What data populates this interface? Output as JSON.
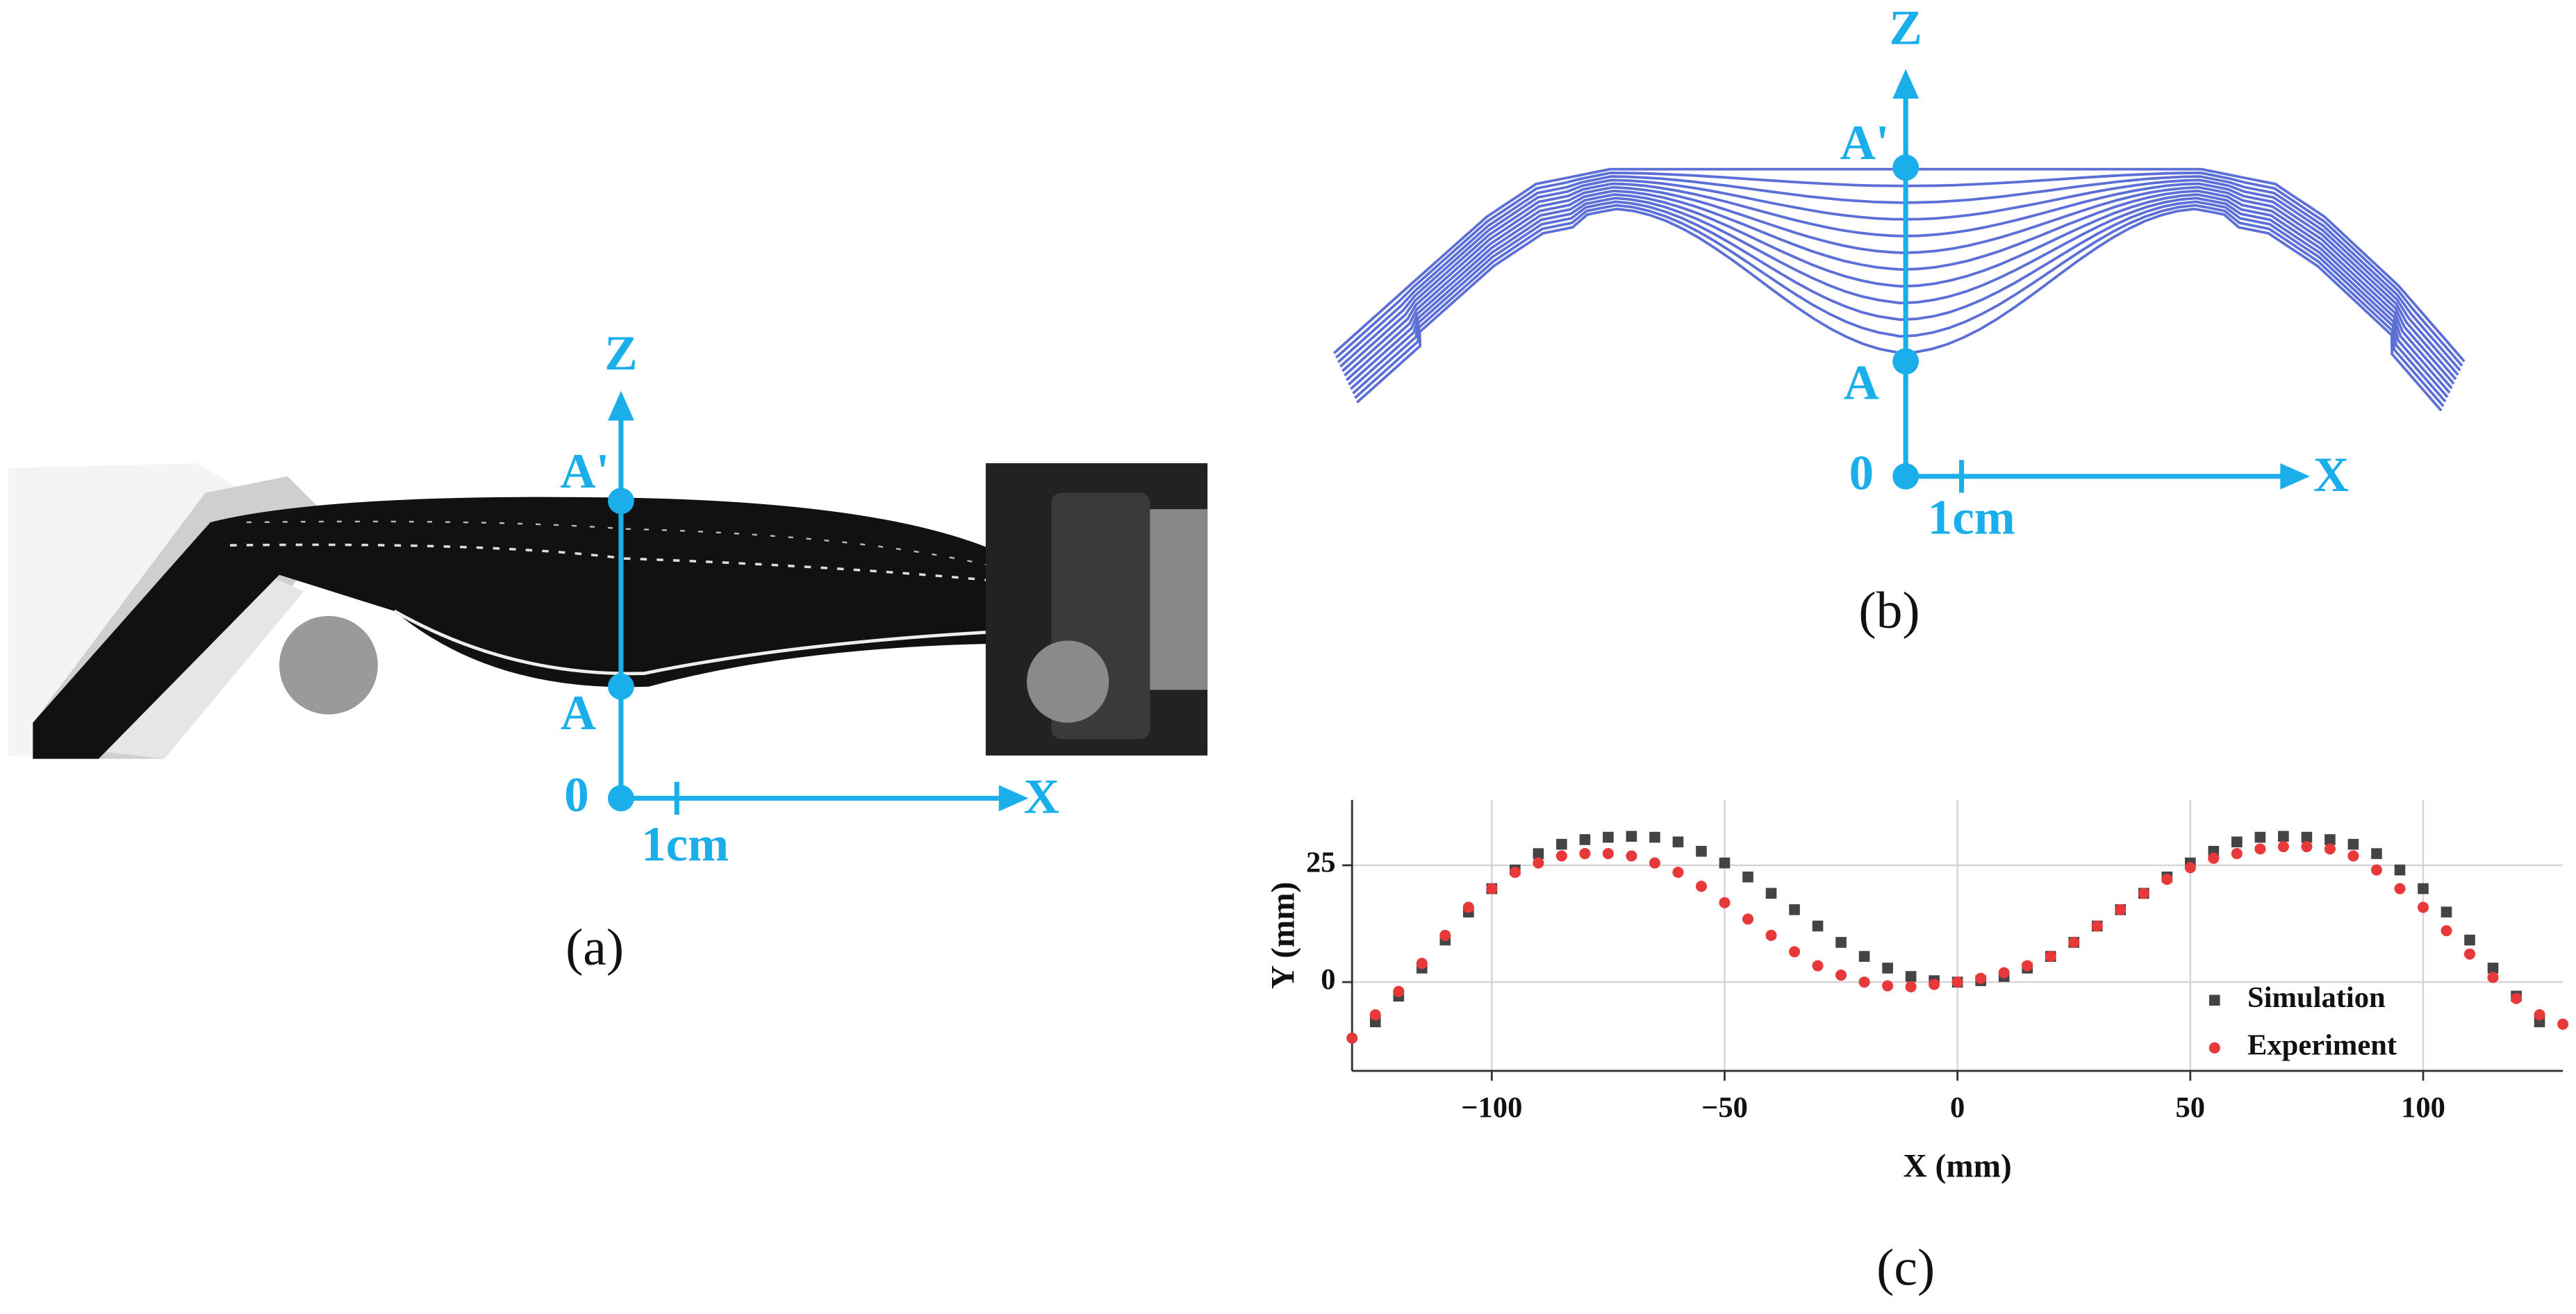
{
  "panels": {
    "a": {
      "label": "(a)",
      "axis_z": "Z",
      "axis_x": "X",
      "origin": "0",
      "point_top": "A'",
      "point_bottom": "A",
      "scale": "1cm"
    },
    "b": {
      "label": "(b)",
      "axis_z": "Z",
      "axis_x": "X",
      "origin": "0",
      "point_top": "A'",
      "point_bottom": "A",
      "scale": "1cm"
    },
    "c": {
      "label": "(c)"
    }
  },
  "chart_data": {
    "type": "scatter",
    "x_label": "X (mm)",
    "y_label": "Y (mm)",
    "xlim": [
      -130,
      130
    ],
    "ylim": [
      -19,
      39
    ],
    "xticks": [
      {
        "value": -100,
        "label": "−100"
      },
      {
        "value": -50,
        "label": "−50"
      },
      0,
      50,
      100
    ],
    "yticks": [
      0,
      25
    ],
    "grid": true,
    "legend": "lower right",
    "series": [
      {
        "name": "Simulation",
        "color": "#444444",
        "marker": "square",
        "x": [
          -125,
          -120,
          -115,
          -110,
          -105,
          -100,
          -95,
          -90,
          -85,
          -80,
          -75,
          -70,
          -65,
          -60,
          -55,
          -50,
          -45,
          -40,
          -35,
          -30,
          -25,
          -20,
          -15,
          -10,
          -5,
          0,
          5,
          10,
          15,
          20,
          25,
          30,
          35,
          40,
          45,
          50,
          55,
          60,
          65,
          70,
          75,
          80,
          85,
          90,
          95,
          100,
          105,
          110,
          115,
          120,
          125
        ],
        "values": [
          -8.5,
          -3,
          3,
          9,
          15,
          20,
          24,
          27.5,
          29.5,
          30.5,
          31,
          31.2,
          31,
          30,
          28,
          25.5,
          22.5,
          19,
          15.5,
          12,
          8.5,
          5.5,
          3,
          1.2,
          0.3,
          0,
          0.3,
          1.2,
          3,
          5.5,
          8.5,
          12,
          15.5,
          19,
          22.5,
          25.5,
          28,
          30,
          31,
          31.2,
          31,
          30.5,
          29.5,
          27.5,
          24,
          20,
          15,
          9,
          3,
          -3,
          -8.5
        ]
      },
      {
        "name": "Experiment",
        "color": "#e8393a",
        "marker": "circle",
        "x": [
          -130,
          -125,
          -120,
          -115,
          -110,
          -105,
          -100,
          -95,
          -90,
          -85,
          -80,
          -75,
          -70,
          -65,
          -60,
          -55,
          -50,
          -45,
          -40,
          -35,
          -30,
          -25,
          -20,
          -15,
          -10,
          -5,
          0,
          5,
          10,
          15,
          20,
          25,
          30,
          35,
          40,
          45,
          50,
          55,
          60,
          65,
          70,
          75,
          80,
          85,
          90,
          95,
          100,
          105,
          110,
          115,
          120,
          125,
          130
        ],
        "values": [
          -12,
          -7,
          -2,
          4,
          10,
          16,
          20,
          23.5,
          25.5,
          27,
          27.5,
          27.5,
          27,
          25.5,
          23.5,
          20.5,
          17,
          13.5,
          10,
          6.5,
          3.5,
          1.5,
          0,
          -0.8,
          -1,
          -0.5,
          0,
          0.8,
          2,
          3.5,
          5.5,
          8.5,
          12,
          15.5,
          19,
          22,
          24.5,
          26.5,
          27.5,
          28.5,
          29,
          29,
          28.5,
          27,
          24,
          20,
          16,
          11,
          6,
          1,
          -3.5,
          -7,
          -9
        ]
      }
    ]
  }
}
